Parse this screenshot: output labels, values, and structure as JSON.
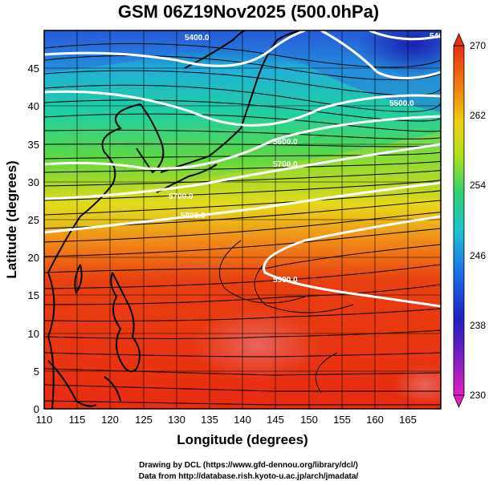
{
  "title": "GSM 06Z19Nov2025 (500.0hPa)",
  "x_axis": {
    "label": "Longitude (degrees)",
    "ticks": [
      "110",
      "115",
      "120",
      "125",
      "130",
      "135",
      "140",
      "145",
      "150",
      "155",
      "160",
      "165"
    ],
    "range": [
      110,
      170
    ]
  },
  "y_axis": {
    "label": "Latitude  (degrees)",
    "ticks": [
      "0",
      "5",
      "10",
      "15",
      "20",
      "25",
      "30",
      "35",
      "40",
      "45"
    ],
    "range": [
      0,
      50
    ]
  },
  "colorbar": {
    "ticks": [
      "230",
      "238",
      "246",
      "254",
      "262",
      "270"
    ],
    "range": [
      230,
      270
    ],
    "colors": [
      "#e020c0",
      "#2020c0",
      "#1a70e8",
      "#20c0d0",
      "#30d070",
      "#a8e020",
      "#f0d010",
      "#f08010",
      "#e83010"
    ]
  },
  "contours": [
    {
      "label": "5400.0"
    },
    {
      "label": "5500.0"
    },
    {
      "label": "5600.0"
    },
    {
      "label": "5700.0"
    },
    {
      "label": "5800.0"
    },
    {
      "label": "5900.0"
    }
  ],
  "credits": {
    "line1": "Drawing by DCL (https://www.gfd-dennou.org/library/dcl/)",
    "line2": "Data from http://database.rish.kyoto-u.ac.jp/arch/jmadata/"
  }
}
